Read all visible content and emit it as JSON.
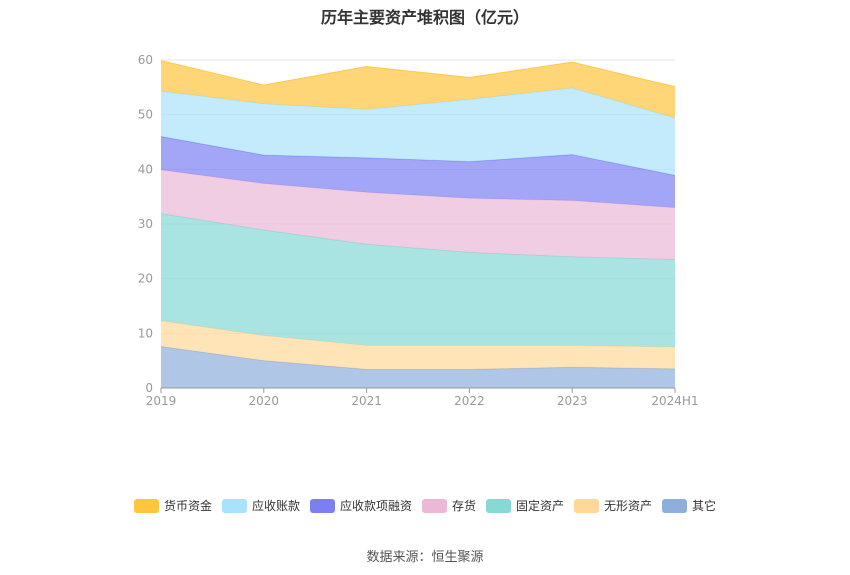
{
  "chart_data": {
    "type": "area",
    "stacked": true,
    "title": "历年主要资产堆积图（亿元）",
    "categories": [
      "2019",
      "2020",
      "2021",
      "2022",
      "2023",
      "2024H1"
    ],
    "ylim": [
      0,
      60
    ],
    "yticks": [
      "0",
      "10",
      "20",
      "30",
      "40",
      "50",
      "60"
    ],
    "grid": true,
    "legend_position": "bottom",
    "series": [
      {
        "name": "其它",
        "color": "#8eaedb",
        "values": [
          7.6,
          5.0,
          3.4,
          3.4,
          3.8,
          3.5
        ]
      },
      {
        "name": "无形资产",
        "color": "#ffd898",
        "values": [
          4.7,
          4.6,
          4.4,
          4.4,
          4.0,
          4.0
        ]
      },
      {
        "name": "固定资产",
        "color": "#86d9d5",
        "values": [
          19.6,
          19.3,
          18.5,
          17.0,
          16.2,
          16.0
        ]
      },
      {
        "name": "存货",
        "color": "#ebb8d7",
        "values": [
          8.0,
          8.5,
          9.5,
          9.9,
          10.3,
          9.5
        ]
      },
      {
        "name": "应收款项融资",
        "color": "#7c7ff2",
        "values": [
          6.1,
          5.2,
          6.3,
          6.7,
          8.4,
          5.9
        ]
      },
      {
        "name": "应收账款",
        "color": "#a9e2fb",
        "values": [
          8.3,
          9.4,
          8.9,
          11.4,
          12.2,
          10.5
        ]
      },
      {
        "name": "货币资金",
        "color": "#ffc53d",
        "values": [
          5.6,
          3.4,
          7.8,
          4.0,
          4.7,
          5.7
        ]
      }
    ],
    "legend_order": [
      "货币资金",
      "应收账款",
      "应收款项融资",
      "存货",
      "固定资产",
      "无形资产",
      "其它"
    ]
  },
  "source_note": "数据来源：恒生聚源"
}
